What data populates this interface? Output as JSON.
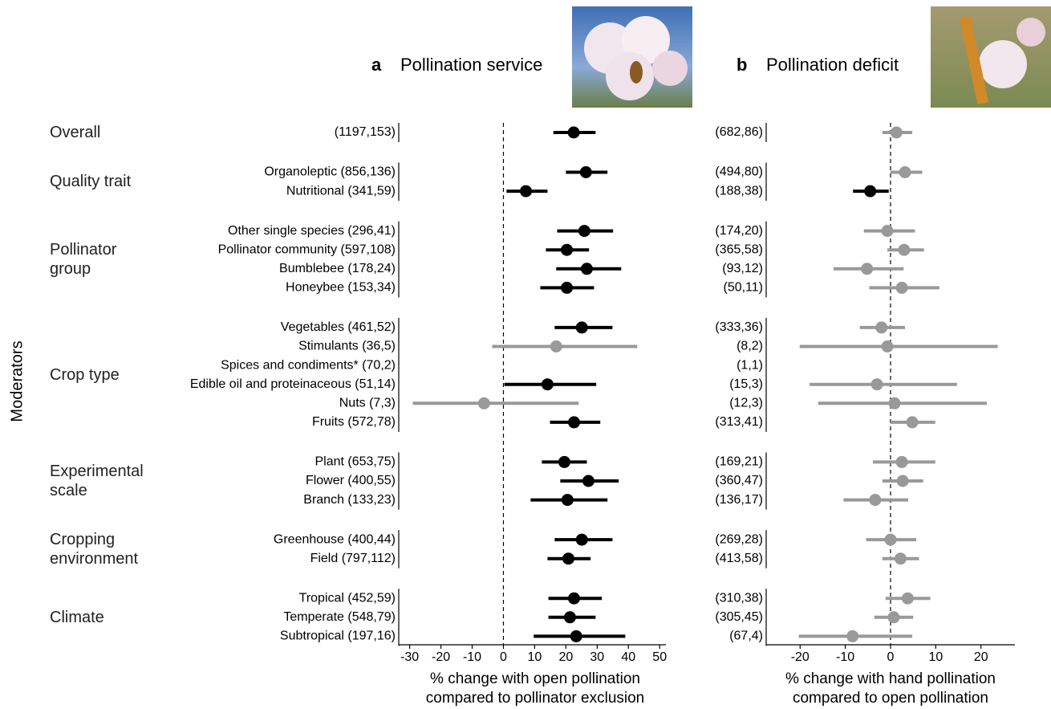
{
  "moderators": {
    "title": "Moderators",
    "groups": [
      "Overall",
      "Quality trait",
      "Pollinator group",
      "Crop type",
      "Experimental scale",
      "Cropping environment",
      "Climate"
    ]
  },
  "chart_data": [
    {
      "type": "forest",
      "panel_label": "a",
      "title": "Pollination service",
      "xlabel": [
        "% change with open pollination",
        "compared to pollinator exclusion"
      ],
      "xlim": [
        -33.5,
        52
      ],
      "xticks": [
        -30,
        -20,
        -10,
        0,
        10,
        20,
        30,
        40,
        50
      ],
      "refline": 0,
      "groups": [
        {
          "categories": [
            "(1197,153)"
          ],
          "values": [
            22.5
          ],
          "lower": [
            16
          ],
          "upper": [
            29.5
          ],
          "colors": [
            "#000000"
          ]
        },
        {
          "categories": [
            "Organoleptic (856,136)",
            "Nutritional (341,59)"
          ],
          "values": [
            26.4,
            7.2
          ],
          "lower": [
            20,
            1
          ],
          "upper": [
            33.3,
            14.1
          ],
          "colors": [
            "#000000",
            "#000000"
          ]
        },
        {
          "categories": [
            "Other single species (296,41)",
            "Pollinator community (597,108)",
            "Bumblebee (178,24)",
            "Honeybee (153,34)"
          ],
          "values": [
            25.9,
            20.3,
            26.7,
            20.3
          ],
          "lower": [
            17.2,
            13.6,
            16.9,
            11.8
          ],
          "upper": [
            35.1,
            27.4,
            37.7,
            29
          ],
          "colors": [
            "#000000",
            "#000000",
            "#000000",
            "#000000"
          ]
        },
        {
          "categories": [
            "Vegetables (461,52)",
            "Stimulants (36,5)",
            "Spices and condiments* (70,2)",
            "Edible oil and proteinaceous (51,14)",
            "Nuts (7,3)",
            "Fruits (572,78)"
          ],
          "values": [
            25.1,
            16.9,
            null,
            14.1,
            -6.2,
            22.6
          ],
          "lower": [
            16.4,
            -3.6,
            null,
            0.3,
            -29,
            14.9
          ],
          "upper": [
            34.9,
            42.8,
            null,
            29.7,
            24.1,
            31
          ],
          "colors": [
            "#000000",
            "#999999",
            null,
            "#000000",
            "#999999",
            "#000000"
          ]
        },
        {
          "categories": [
            "Plant (653,75)",
            "Flower (400,55)",
            "Branch (133,23)"
          ],
          "values": [
            19.5,
            27.2,
            20.5
          ],
          "lower": [
            12.3,
            18.2,
            8.7
          ],
          "upper": [
            26.7,
            36.9,
            33.3
          ],
          "colors": [
            "#000000",
            "#000000",
            "#000000"
          ]
        },
        {
          "categories": [
            "Greenhouse (400,44)",
            "Field (797,112)"
          ],
          "values": [
            25.1,
            20.8
          ],
          "lower": [
            16.4,
            14.1
          ],
          "upper": [
            34.9,
            27.9
          ],
          "colors": [
            "#000000",
            "#000000"
          ]
        },
        {
          "categories": [
            "Tropical (452,59)",
            "Temperate (548,79)",
            "Subtropical (197,16)"
          ],
          "values": [
            22.6,
            21.3,
            23.3
          ],
          "lower": [
            14.4,
            14.4,
            9.7
          ],
          "upper": [
            31.5,
            29.5,
            39
          ],
          "colors": [
            "#000000",
            "#000000",
            "#000000"
          ]
        }
      ]
    },
    {
      "type": "forest",
      "panel_label": "b",
      "title": "Pollination deficit",
      "xlabel": [
        "% change with hand pollination",
        "compared to open pollination"
      ],
      "xlim": [
        -27.5,
        27.5
      ],
      "xticks": [
        -20,
        -10,
        0,
        10,
        20
      ],
      "refline": 0,
      "groups": [
        {
          "categories": [
            "(682,86)"
          ],
          "values": [
            1.3
          ],
          "lower": [
            -1.8
          ],
          "upper": [
            4.8
          ],
          "colors": [
            "#999999"
          ]
        },
        {
          "categories": [
            "(494,80)",
            "(188,38)"
          ],
          "values": [
            3.2,
            -4.5
          ],
          "lower": [
            0,
            -8.3
          ],
          "upper": [
            7,
            -0.4
          ],
          "colors": [
            "#999999",
            "#000000"
          ]
        },
        {
          "categories": [
            "(174,20)",
            "(365,58)",
            "(93,12)",
            "(50,11)"
          ],
          "values": [
            -0.7,
            3,
            -5.2,
            2.5
          ],
          "lower": [
            -5.9,
            -0.7,
            -12.6,
            -4.7
          ],
          "upper": [
            5.4,
            7.4,
            2.9,
            10.8
          ],
          "colors": [
            "#999999",
            "#999999",
            "#999999",
            "#999999"
          ]
        },
        {
          "categories": [
            "(333,36)",
            "(8,2)",
            "(1,1)",
            "(15,3)",
            "(12,3)",
            "(313,41)"
          ],
          "values": [
            -2,
            -0.7,
            null,
            -3,
            0.9,
            4.8
          ],
          "lower": [
            -6.8,
            -20.1,
            null,
            -17.9,
            -16,
            0
          ],
          "upper": [
            3.2,
            23.7,
            null,
            14.7,
            21.3,
            9.9
          ],
          "colors": [
            "#999999",
            "#999999",
            null,
            "#999999",
            "#999999",
            "#999999"
          ]
        },
        {
          "categories": [
            "(169,21)",
            "(360,47)",
            "(136,17)"
          ],
          "values": [
            2.5,
            2.7,
            -3.4
          ],
          "lower": [
            -3.9,
            -1.8,
            -10.4
          ],
          "upper": [
            9.9,
            7.2,
            3.9
          ],
          "colors": [
            "#999999",
            "#999999",
            "#999999"
          ]
        },
        {
          "categories": [
            "(269,28)",
            "(413,58)"
          ],
          "values": [
            0,
            2.2
          ],
          "lower": [
            -5.4,
            -1.8
          ],
          "upper": [
            5.7,
            6.3
          ],
          "colors": [
            "#999999",
            "#999999"
          ]
        },
        {
          "categories": [
            "(310,38)",
            "(305,45)",
            "(67,4)"
          ],
          "values": [
            3.8,
            0.7,
            -8.4
          ],
          "lower": [
            -1.1,
            -3.6,
            -20.3
          ],
          "upper": [
            8.8,
            5,
            4.8
          ],
          "colors": [
            "#999999",
            "#999999",
            "#999999"
          ]
        }
      ]
    }
  ]
}
